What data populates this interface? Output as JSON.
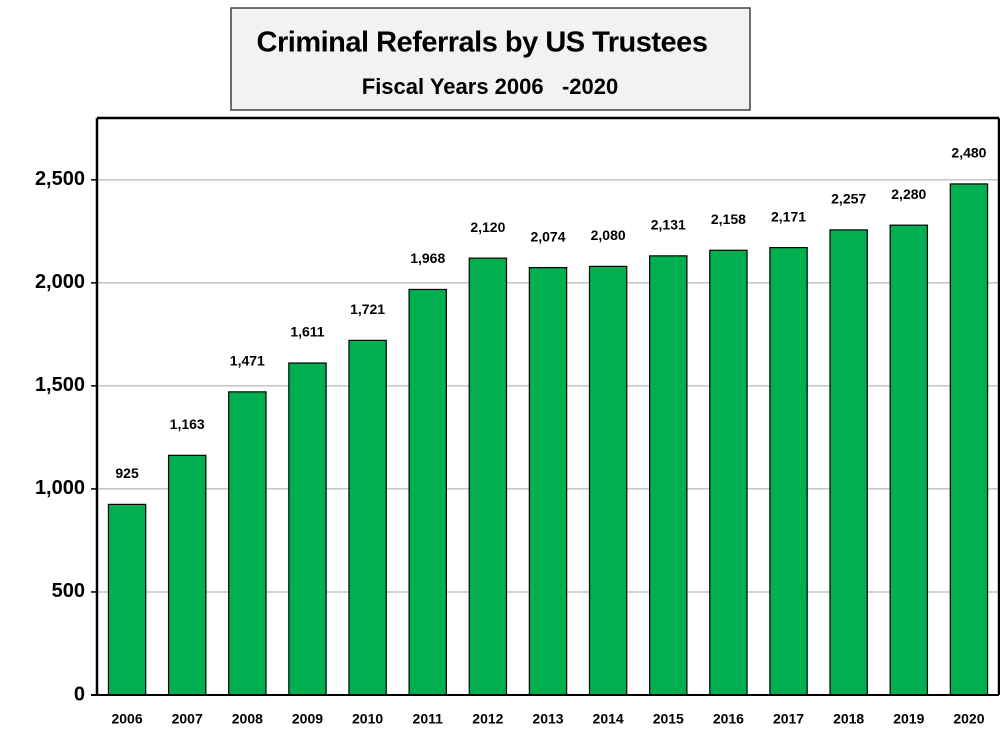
{
  "chart_data": {
    "type": "bar",
    "title": "Criminal Referrals by US Trustees",
    "subtitle": "Fiscal Years 2006   -2020",
    "categories": [
      "2006",
      "2007",
      "2008",
      "2009",
      "2010",
      "2011",
      "2012",
      "2013",
      "2014",
      "2015",
      "2016",
      "2017",
      "2018",
      "2019",
      "2020"
    ],
    "values": [
      925,
      1163,
      1471,
      1611,
      1721,
      1968,
      2120,
      2074,
      2080,
      2131,
      2158,
      2171,
      2257,
      2280,
      2480
    ],
    "value_labels": [
      "925",
      "1,163",
      "1,471",
      "1,611",
      "1,721",
      "1,968",
      "2,120",
      "2,074",
      "2,080",
      "2,131",
      "2,158",
      "2,171",
      "2,257",
      "2,280",
      "2,480"
    ],
    "color": "#00b050",
    "ylim": [
      0,
      2800
    ],
    "yticks": [
      0,
      500,
      {
        "value": 1000,
        "label": "1,000"
      },
      {
        "value": 1500,
        "label": "1,500"
      },
      {
        "value": 2000,
        "label": "2,000"
      },
      {
        "value": 2500,
        "label": "2,500"
      }
    ],
    "grid": true
  }
}
